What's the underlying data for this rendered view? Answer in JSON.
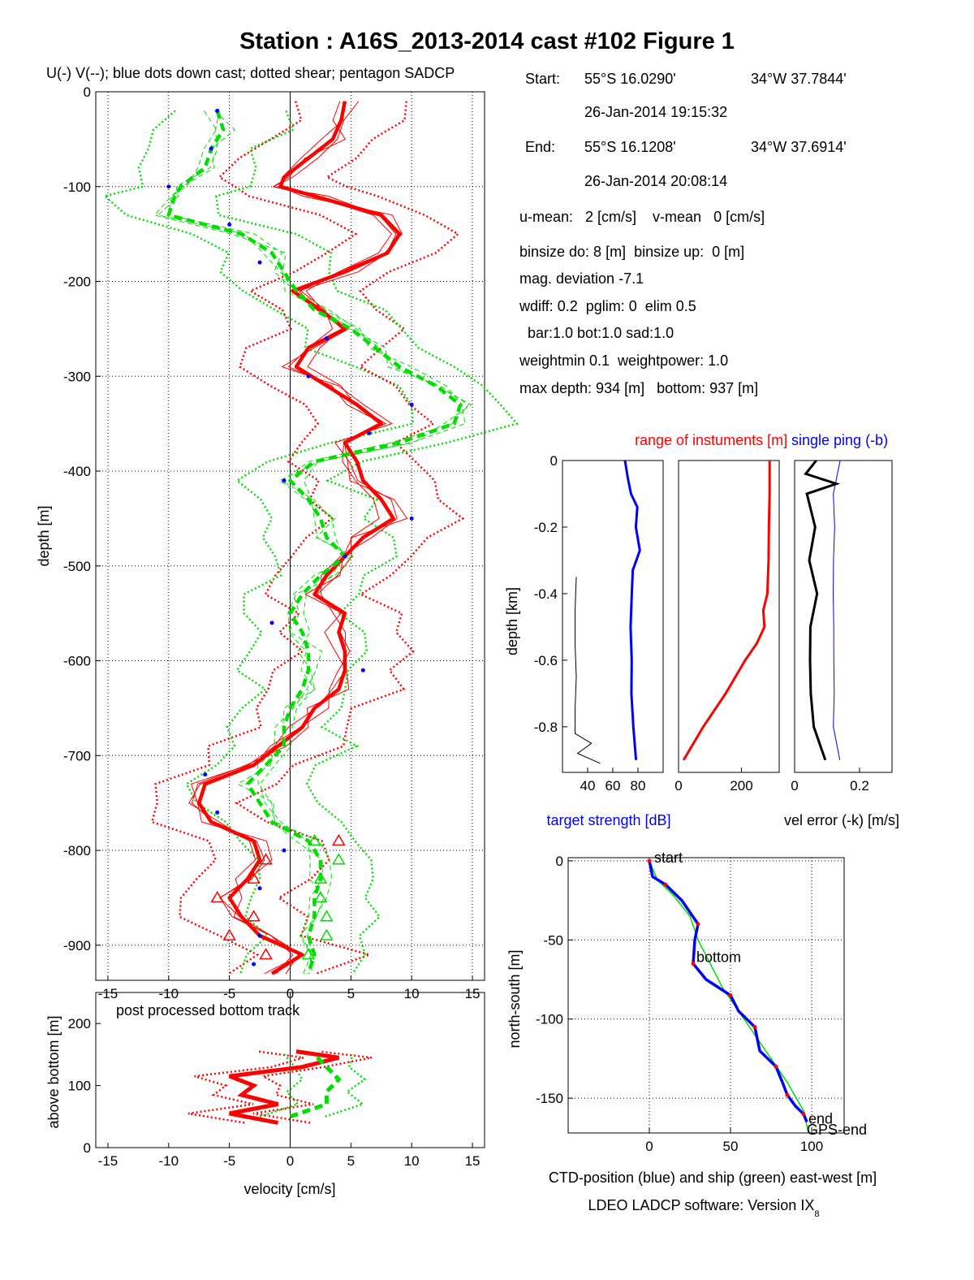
{
  "figure": {
    "title": "Station : A16S_2013-2014 cast #102  Figure 1",
    "footer": "LDEO LADCP software: Version IX",
    "footer_sub": "8"
  },
  "info": {
    "start_label": "Start:",
    "start_lat": "55°S 16.0290'",
    "start_lon": "34°W 37.7844'",
    "start_time": "26-Jan-2014 19:15:32",
    "end_label": "End:",
    "end_lat": "55°S 16.1208'",
    "end_lon": "34°W 37.6914'",
    "end_time": "26-Jan-2014 20:08:14",
    "lines": [
      "u-mean:   2 [cm/s]    v-mean   0 [cm/s]",
      "binsize do: 8 [m]  binsize up:  0 [m]",
      "mag. deviation -7.1",
      "wdiff: 0.2  pglim: 0  elim 0.5",
      "  bar:1.0 bot:1.0 sad:1.0",
      "weightmin 0.1  weightpower: 1.0",
      "max depth: 934 [m]   bottom: 937 [m]"
    ]
  },
  "chart_data": [
    {
      "id": "velocity-profile",
      "type": "line",
      "title": "U(-) V(--); blue dots down cast; dotted shear; pentagon SADCP",
      "xlabel": "",
      "ylabel": "depth [m]",
      "xlim": [
        -16,
        16
      ],
      "ylim": [
        -937,
        0
      ],
      "xticks": [
        "-15",
        "-10",
        "-5",
        "0",
        "5",
        "10",
        "15"
      ],
      "yticks": [
        "0",
        "-100",
        "-200",
        "-300",
        "-400",
        "-500",
        "-600",
        "-700",
        "-800",
        "-900"
      ],
      "grid": true,
      "colors": {
        "u": "#ff0000",
        "v": "#00dd00",
        "downcast": "#0000ff"
      },
      "series": [
        {
          "key": "u",
          "depth": [
            10,
            30,
            50,
            70,
            90,
            100,
            110,
            130,
            150,
            170,
            190,
            210,
            230,
            250,
            270,
            290,
            310,
            330,
            350,
            370,
            390,
            410,
            430,
            450,
            470,
            490,
            510,
            530,
            550,
            570,
            590,
            610,
            630,
            650,
            670,
            690,
            710,
            730,
            750,
            770,
            790,
            810,
            830,
            850,
            870,
            890,
            910,
            930
          ],
          "values": [
            4.5,
            4.2,
            3.5,
            1.5,
            -0.5,
            -0.8,
            2.0,
            7.5,
            9.0,
            8.0,
            4.5,
            0.2,
            2.5,
            4.5,
            1.5,
            0.5,
            3.0,
            5.5,
            7.5,
            4.5,
            5.5,
            6.0,
            7.5,
            8.5,
            6.0,
            4.5,
            3.0,
            2.0,
            4.5,
            4.0,
            4.5,
            4.5,
            4.0,
            2.0,
            1.0,
            -1.0,
            -3.0,
            -7.0,
            -7.5,
            -6.5,
            -3.0,
            -2.5,
            -3.5,
            -5.0,
            -4.0,
            -2.5,
            1.0,
            -1.5
          ]
        },
        {
          "key": "v",
          "depth": [
            20,
            40,
            60,
            80,
            100,
            110,
            130,
            150,
            170,
            190,
            210,
            230,
            250,
            270,
            290,
            310,
            330,
            350,
            370,
            390,
            410,
            430,
            450,
            470,
            490,
            510,
            530,
            550,
            570,
            590,
            610,
            630,
            650,
            670,
            690,
            710,
            730,
            750,
            770,
            790,
            810,
            830,
            850,
            870,
            890,
            910,
            930
          ],
          "values": [
            -6.0,
            -5.5,
            -6.5,
            -7.0,
            -9.0,
            -9.5,
            -10.0,
            -4.0,
            -1.5,
            -0.5,
            0.5,
            2.0,
            5.0,
            7.0,
            9.0,
            12.0,
            14.0,
            13.5,
            9.0,
            2.0,
            0.0,
            1.5,
            2.5,
            3.0,
            4.5,
            2.5,
            1.0,
            0.0,
            1.0,
            1.5,
            1.5,
            1.0,
            0.0,
            -0.5,
            -0.5,
            -2.0,
            -3.5,
            -2.5,
            -1.5,
            1.5,
            2.5,
            2.5,
            2.0,
            2.0,
            1.5,
            2.0,
            1.5
          ]
        }
      ],
      "downcast_points": {
        "depth": [
          20,
          60,
          100,
          140,
          180,
          260,
          300,
          330,
          360,
          410,
          450,
          490,
          560,
          610,
          720,
          760,
          800,
          840,
          890,
          920
        ],
        "values": [
          -6,
          -6.5,
          -10,
          -5,
          -2.5,
          3,
          1.5,
          10,
          6.5,
          -0.5,
          10,
          4.5,
          -1.5,
          6,
          -7,
          -6,
          -0.5,
          -2.5,
          -2.5,
          -3
        ]
      },
      "triangles": {
        "depth": [
          790,
          810,
          830,
          850,
          870,
          890,
          910
        ],
        "u": [
          4,
          -2,
          -3,
          -6,
          -3,
          -5,
          -2
        ],
        "v": [
          2,
          4,
          2.5,
          2.5,
          3,
          3,
          1.5
        ]
      }
    },
    {
      "id": "bottom-track",
      "type": "line",
      "title": "post processed bottom track",
      "xlabel": "velocity [cm/s]",
      "ylabel": "above bottom [m]",
      "xlim": [
        -16,
        16
      ],
      "ylim": [
        0,
        250
      ],
      "xticks": [
        "-15",
        "-10",
        "-5",
        "0",
        "5",
        "10",
        "15"
      ],
      "yticks": [
        "0",
        "100",
        "200"
      ],
      "series": [
        {
          "key": "u",
          "height": [
            40,
            55,
            70,
            85,
            100,
            115,
            130,
            145,
            155
          ],
          "values": [
            -1,
            -5,
            -1,
            -4,
            -3,
            -5,
            1,
            4,
            0.5
          ]
        },
        {
          "key": "v",
          "height": [
            50,
            70,
            90,
            110,
            130,
            150
          ],
          "values": [
            0,
            3,
            3,
            4,
            3,
            2
          ]
        }
      ]
    },
    {
      "id": "target-strength",
      "type": "line",
      "xlabel": "target strength [dB]",
      "ylabel": "depth [km]",
      "xlim": [
        20,
        100
      ],
      "ylim": [
        -0.937,
        0
      ],
      "xticks": [
        "40",
        "60",
        "80"
      ],
      "yticks": [
        "0",
        "-0.2",
        "-0.4",
        "-0.6",
        "-0.8"
      ],
      "series": [
        {
          "key": "blue",
          "depth": [
            0,
            0.05,
            0.1,
            0.14,
            0.2,
            0.27,
            0.33,
            0.4,
            0.5,
            0.6,
            0.7,
            0.8,
            0.9
          ],
          "values": [
            70,
            72,
            75,
            80,
            78,
            82,
            76,
            75,
            74,
            75,
            75,
            76,
            78
          ]
        },
        {
          "key": "black",
          "depth": [
            0.35,
            0.45,
            0.55,
            0.65,
            0.75,
            0.82,
            0.85,
            0.88,
            0.91
          ],
          "values": [
            31,
            30,
            30,
            31,
            30,
            30,
            43,
            32,
            50
          ]
        }
      ]
    },
    {
      "id": "instrument-range",
      "type": "line",
      "title": "range of instuments [m]",
      "xlim": [
        0,
        320
      ],
      "ylim": [
        -0.937,
        0
      ],
      "xticks": [
        "0",
        "200"
      ],
      "series": [
        {
          "key": "red",
          "depth": [
            0,
            0.1,
            0.2,
            0.3,
            0.4,
            0.45,
            0.5,
            0.55,
            0.6,
            0.7,
            0.8,
            0.9
          ],
          "values": [
            290,
            288,
            287,
            285,
            282,
            270,
            275,
            250,
            210,
            150,
            80,
            15
          ]
        }
      ]
    },
    {
      "id": "velocity-error",
      "type": "line",
      "title": "single ping (-b)",
      "xlabel": "vel error (-k) [m/s]",
      "xlim": [
        0,
        0.3
      ],
      "ylim": [
        -0.937,
        0
      ],
      "xticks": [
        "0",
        "0.2"
      ],
      "series": [
        {
          "key": "black",
          "depth": [
            0,
            0.04,
            0.07,
            0.1,
            0.2,
            0.3,
            0.4,
            0.5,
            0.6,
            0.7,
            0.8,
            0.9
          ],
          "values": [
            0.07,
            0.04,
            0.12,
            0.04,
            0.06,
            0.05,
            0.06,
            0.05,
            0.05,
            0.05,
            0.05,
            0.09
          ]
        },
        {
          "key": "blue",
          "depth": [
            0,
            0.1,
            0.2,
            0.3,
            0.4,
            0.5,
            0.6,
            0.7,
            0.8,
            0.9
          ],
          "values": [
            0.14,
            0.12,
            0.12,
            0.12,
            0.12,
            0.12,
            0.12,
            0.12,
            0.12,
            0.14
          ]
        }
      ]
    },
    {
      "id": "position-track",
      "type": "line",
      "xlabel": "CTD-position (blue) and ship (green) east-west [m]",
      "ylabel": "north-south [m]",
      "xlim": [
        -50,
        120
      ],
      "ylim": [
        -172,
        2
      ],
      "xticks": [
        "0",
        "50",
        "100"
      ],
      "yticks": [
        "0",
        "-50",
        "-100",
        "-150"
      ],
      "annotations": [
        "start",
        "bottom",
        "end",
        "GPS-end"
      ],
      "series": [
        {
          "key": "ctd",
          "x": [
            0,
            2,
            10,
            20,
            30,
            28,
            27,
            35,
            50,
            55,
            65,
            68,
            78,
            82,
            85,
            90,
            95,
            97
          ],
          "y": [
            0,
            -10,
            -15,
            -25,
            -40,
            -50,
            -65,
            -75,
            -85,
            -95,
            -105,
            -120,
            -130,
            -140,
            -148,
            -155,
            -160,
            -165
          ]
        },
        {
          "key": "ship",
          "x": [
            0,
            5,
            15,
            25,
            30,
            35,
            45,
            55,
            65,
            75,
            85,
            95,
            98
          ],
          "y": [
            0,
            -12,
            -22,
            -35,
            -50,
            -60,
            -80,
            -95,
            -110,
            -125,
            -140,
            -158,
            -172
          ]
        }
      ]
    }
  ]
}
